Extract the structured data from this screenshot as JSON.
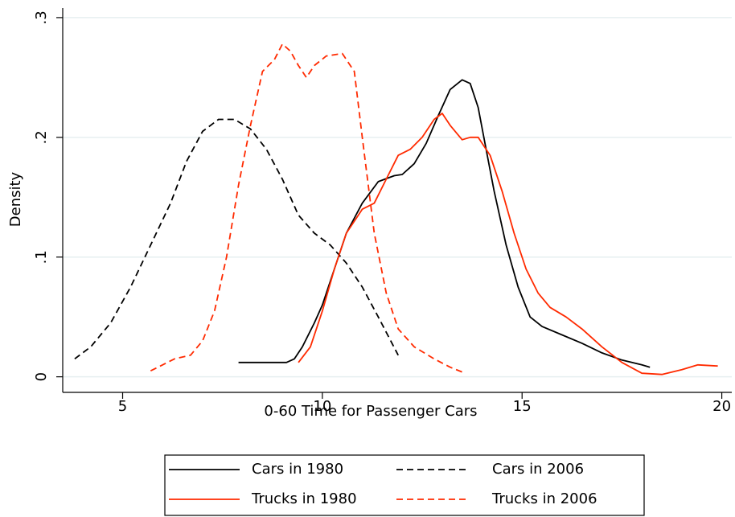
{
  "chart_data": {
    "type": "line",
    "xlabel": "0-60 Time for Passenger Cars",
    "ylabel": "Density",
    "xlim": [
      3.5,
      20.25
    ],
    "ylim": [
      -0.013,
      0.308
    ],
    "xticks": [
      5,
      10,
      15,
      20
    ],
    "yticks": [
      0,
      {
        "value": 0.1,
        "label": ".1"
      },
      {
        "value": 0.2,
        "label": ".2"
      },
      {
        "value": 0.3,
        "label": ".3"
      }
    ],
    "grid": true,
    "legend": "bottom",
    "series": [
      {
        "name": "Cars in 1980",
        "color": "#000000",
        "line_style": "solid",
        "x": [
          7.9,
          9.1,
          9.3,
          9.5,
          9.8,
          10.0,
          10.3,
          10.6,
          11.0,
          11.4,
          11.8,
          12.0,
          12.3,
          12.6,
          12.9,
          13.2,
          13.5,
          13.7,
          13.9,
          14.1,
          14.3,
          14.6,
          14.9,
          15.2,
          15.5,
          16.0,
          16.5,
          17.0,
          17.5,
          18.0,
          18.2
        ],
        "values": [
          0.012,
          0.012,
          0.015,
          0.025,
          0.045,
          0.06,
          0.09,
          0.12,
          0.145,
          0.163,
          0.168,
          0.169,
          0.178,
          0.195,
          0.218,
          0.24,
          0.248,
          0.245,
          0.225,
          0.19,
          0.155,
          0.11,
          0.075,
          0.05,
          0.042,
          0.035,
          0.028,
          0.02,
          0.014,
          0.01,
          0.008
        ]
      },
      {
        "name": "Cars in 2006",
        "color": "#000000",
        "line_style": "dashed",
        "x": [
          3.8,
          4.2,
          4.7,
          5.2,
          5.7,
          6.2,
          6.6,
          7.0,
          7.4,
          7.8,
          8.2,
          8.6,
          9.0,
          9.4,
          9.8,
          10.2,
          10.6,
          11.0,
          11.4,
          11.9
        ],
        "values": [
          0.015,
          0.025,
          0.045,
          0.075,
          0.11,
          0.145,
          0.18,
          0.205,
          0.215,
          0.215,
          0.207,
          0.19,
          0.165,
          0.135,
          0.12,
          0.11,
          0.095,
          0.075,
          0.05,
          0.018
        ]
      },
      {
        "name": "Trucks in 1980",
        "color": "#ff2a00",
        "line_style": "solid",
        "x": [
          9.4,
          9.7,
          10.0,
          10.3,
          10.6,
          11.0,
          11.3,
          11.6,
          11.9,
          12.2,
          12.5,
          12.8,
          13.0,
          13.2,
          13.5,
          13.7,
          13.9,
          14.2,
          14.5,
          14.8,
          15.1,
          15.4,
          15.7,
          16.1,
          16.5,
          17.0,
          17.5,
          18.0,
          18.5,
          19.0,
          19.4,
          19.9
        ],
        "values": [
          0.012,
          0.025,
          0.055,
          0.09,
          0.12,
          0.14,
          0.145,
          0.165,
          0.185,
          0.19,
          0.2,
          0.215,
          0.22,
          0.21,
          0.198,
          0.2,
          0.2,
          0.185,
          0.155,
          0.12,
          0.09,
          0.07,
          0.058,
          0.05,
          0.04,
          0.025,
          0.012,
          0.003,
          0.002,
          0.006,
          0.01,
          0.009
        ]
      },
      {
        "name": "Trucks in 2006",
        "color": "#ff2a00",
        "line_style": "dashed",
        "x": [
          5.7,
          6.0,
          6.3,
          6.7,
          7.0,
          7.3,
          7.6,
          7.9,
          8.2,
          8.5,
          8.8,
          9.0,
          9.2,
          9.4,
          9.6,
          9.8,
          10.1,
          10.5,
          10.8,
          11.0,
          11.3,
          11.6,
          11.9,
          12.3,
          12.8,
          13.2,
          13.5
        ],
        "values": [
          0.005,
          0.01,
          0.015,
          0.018,
          0.03,
          0.055,
          0.1,
          0.16,
          0.21,
          0.255,
          0.265,
          0.278,
          0.272,
          0.26,
          0.25,
          0.26,
          0.268,
          0.27,
          0.255,
          0.2,
          0.12,
          0.07,
          0.04,
          0.025,
          0.015,
          0.008,
          0.004
        ]
      }
    ]
  }
}
